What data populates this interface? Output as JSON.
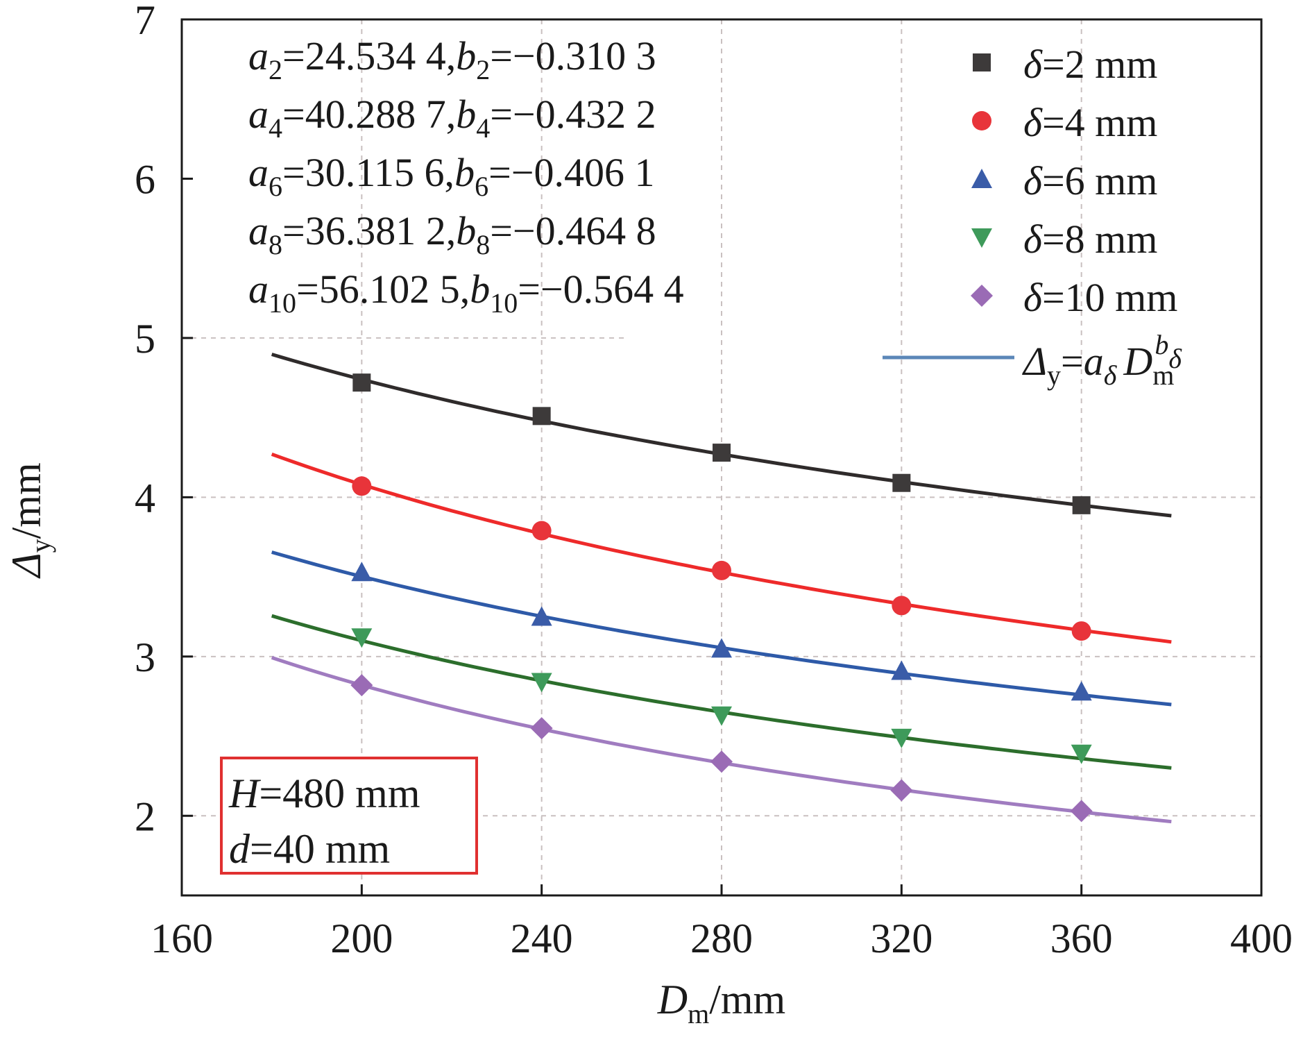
{
  "chart_data": {
    "type": "line",
    "xlabel": {
      "base": "D",
      "sub": "m",
      "unit": "/mm"
    },
    "ylabel": {
      "base": "Δ",
      "sub": "y",
      "unit": "/mm"
    },
    "xlim": [
      160,
      400
    ],
    "ylim": [
      1.5,
      7
    ],
    "x_ticks": [
      "160",
      "200",
      "240",
      "280",
      "320",
      "360",
      "400"
    ],
    "y_ticks": [
      "2",
      "3",
      "4",
      "5",
      "6",
      "7"
    ],
    "x_tick_values": [
      160,
      200,
      240,
      280,
      320,
      360,
      400
    ],
    "y_tick_values": [
      2,
      3,
      4,
      5,
      6,
      7
    ],
    "grid": "dashed, at data x positions and y = 3, 4, 5",
    "x": [
      200,
      240,
      280,
      320,
      360
    ],
    "fit_range": [
      180,
      380
    ],
    "series": [
      {
        "name": "δ=2 mm",
        "label_pre": "δ",
        "label_post": "=2 mm",
        "marker": "square",
        "color": "#3d3a3a",
        "line_color": "#2f2b2b",
        "values": [
          4.72,
          4.51,
          4.28,
          4.09,
          3.95
        ],
        "a": 24.5344,
        "b": -0.3103
      },
      {
        "name": "δ=4 mm",
        "label_pre": "δ",
        "label_post": "=4 mm",
        "marker": "circle",
        "color": "#e8343a",
        "line_color": "#ee2a2a",
        "values": [
          4.07,
          3.79,
          3.54,
          3.32,
          3.16
        ],
        "a": 40.2887,
        "b": -0.4322
      },
      {
        "name": "δ=6 mm",
        "label_pre": "δ",
        "label_post": "=6 mm",
        "marker": "triangle-up",
        "color": "#3a5ca8",
        "line_color": "#2e5aa8",
        "values": [
          3.53,
          3.25,
          3.05,
          2.91,
          2.78
        ],
        "a": 30.1156,
        "b": -0.4061
      },
      {
        "name": "δ=8 mm",
        "label_pre": "δ",
        "label_post": "=8 mm",
        "marker": "triangle-down",
        "color": "#3e9a5a",
        "line_color": "#2c6e2c",
        "values": [
          3.12,
          2.84,
          2.63,
          2.49,
          2.39
        ],
        "a": 36.3812,
        "b": -0.4648
      },
      {
        "name": "δ=10 mm",
        "label_pre": "δ",
        "label_post": "=10 mm",
        "marker": "diamond",
        "color": "#9a6bb5",
        "line_color": "#a07cc0",
        "values": [
          2.82,
          2.55,
          2.34,
          2.16,
          2.03
        ],
        "a": 56.1025,
        "b": -0.5644
      }
    ],
    "fit_legend": {
      "color": "#5b87b8",
      "parts": {
        "a": "Δ",
        "b": "y",
        "c": "=",
        "d": "a",
        "e": "δ",
        "f": "D",
        "g": "m",
        "h": "b",
        "i": "δ"
      }
    },
    "parameters": [
      {
        "a": "a",
        "asub": "2",
        "aval": "=24.534 4,",
        "b": "b",
        "bsub": "2",
        "bval": "=−0.310 3"
      },
      {
        "a": "a",
        "asub": "4",
        "aval": "=40.288 7,",
        "b": "b",
        "bsub": "4",
        "bval": "=−0.432 2"
      },
      {
        "a": "a",
        "asub": "6",
        "aval": "=30.115 6,",
        "b": "b",
        "bsub": "6",
        "bval": "=−0.406 1"
      },
      {
        "a": "a",
        "asub": "8",
        "aval": "=36.381 2,",
        "b": "b",
        "bsub": "8",
        "bval": "=−0.464 8"
      },
      {
        "a": "a",
        "asub": "10",
        "aval": "=56.102 5,",
        "b": "b",
        "bsub": "10",
        "bval": "=−0.564 4"
      }
    ],
    "conditions_box": {
      "line1_var": "H",
      "line1_val": "=480 mm",
      "line2_var": "d",
      "line2_val": "=40 mm",
      "border_color": "#e03030"
    },
    "legend_position": "top-right"
  }
}
